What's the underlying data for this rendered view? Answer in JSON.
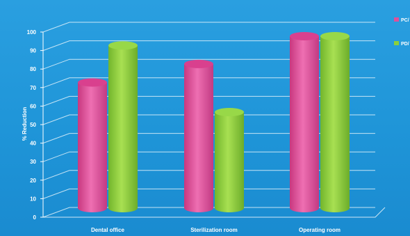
{
  "chart_data": {
    "type": "bar",
    "title": "",
    "xlabel": "",
    "ylabel": "% Reduction",
    "ylim": [
      0,
      100
    ],
    "yticks": [
      0,
      10,
      20,
      30,
      40,
      50,
      60,
      70,
      80,
      90,
      100
    ],
    "categories": [
      "Dental office",
      "Sterilization room",
      "Operating room"
    ],
    "series": [
      {
        "name": "PC/",
        "color": "#e0509a",
        "values": [
          75,
          85,
          100
        ]
      },
      {
        "name": "PD/",
        "color": "#8ccf3c",
        "values": [
          95,
          59,
          100
        ]
      }
    ],
    "legend_position": "right",
    "grid": true
  }
}
